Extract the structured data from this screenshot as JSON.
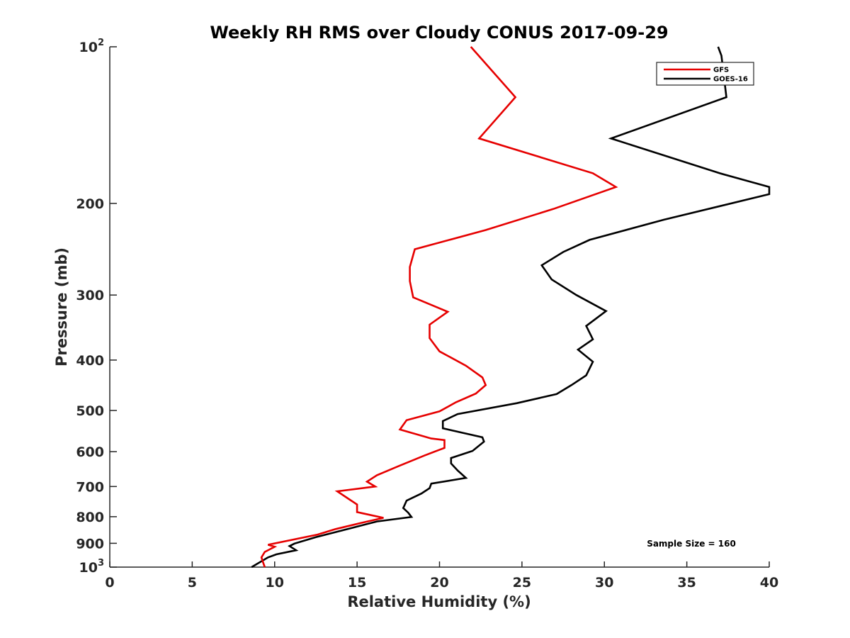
{
  "chart_data": {
    "type": "line",
    "title": "Weekly RH RMS over Cloudy CONUS 2017-09-29",
    "xlabel": "Relative Humidity (%)",
    "ylabel": "Pressure (mb)",
    "xlim": [
      0,
      40
    ],
    "ylim": [
      100,
      1000
    ],
    "y_scale": "log",
    "y_reversed": true,
    "x_ticks": [
      "0",
      "5",
      "10",
      "15",
      "20",
      "25",
      "30",
      "35",
      "40"
    ],
    "y_ticks": [
      {
        "value": 100,
        "base": "10",
        "exp": "2"
      },
      {
        "value": 200,
        "label": "200"
      },
      {
        "value": 300,
        "label": "300"
      },
      {
        "value": 400,
        "label": "400"
      },
      {
        "value": 500,
        "label": "500"
      },
      {
        "value": 600,
        "label": "600"
      },
      {
        "value": 700,
        "label": "700"
      },
      {
        "value": 800,
        "label": "800"
      },
      {
        "value": 900,
        "label": "900"
      },
      {
        "value": 1000,
        "base": "10",
        "exp": "3"
      }
    ],
    "grid": false,
    "legend_position": "top-right",
    "annotation": "Sample Size = 160",
    "series": [
      {
        "name": "GFS",
        "color": "#e60000",
        "points": [
          [
            21.9,
            100
          ],
          [
            24.6,
            125
          ],
          [
            22.4,
            150
          ],
          [
            29.3,
            175
          ],
          [
            30.7,
            186
          ],
          [
            26.9,
            205
          ],
          [
            22.8,
            225
          ],
          [
            18.5,
            245
          ],
          [
            18.2,
            265
          ],
          [
            18.2,
            282
          ],
          [
            18.4,
            303
          ],
          [
            20.5,
            323
          ],
          [
            19.4,
            342
          ],
          [
            19.4,
            363
          ],
          [
            20.0,
            385
          ],
          [
            21.6,
            410
          ],
          [
            22.6,
            432
          ],
          [
            22.8,
            447
          ],
          [
            22.2,
            464
          ],
          [
            21.0,
            482
          ],
          [
            20.0,
            502
          ],
          [
            18.0,
            522
          ],
          [
            17.6,
            544
          ],
          [
            19.5,
            566
          ],
          [
            20.3,
            570
          ],
          [
            20.3,
            590
          ],
          [
            19.1,
            610
          ],
          [
            17.5,
            640
          ],
          [
            16.2,
            666
          ],
          [
            15.6,
            685
          ],
          [
            16.1,
            700
          ],
          [
            13.8,
            715
          ],
          [
            14.5,
            740
          ],
          [
            15.0,
            758
          ],
          [
            15.0,
            784
          ],
          [
            16.6,
            804
          ],
          [
            15.2,
            823
          ],
          [
            13.7,
            845
          ],
          [
            12.6,
            866
          ],
          [
            9.6,
            906
          ],
          [
            10.0,
            914
          ],
          [
            9.4,
            935
          ],
          [
            9.2,
            958
          ],
          [
            9.3,
            980
          ],
          [
            9.4,
            1000
          ]
        ]
      },
      {
        "name": "GOES-16",
        "color": "#000000",
        "points": [
          [
            36.9,
            100
          ],
          [
            37.1,
            104
          ],
          [
            37.4,
            125
          ],
          [
            30.4,
            150
          ],
          [
            37.0,
            175
          ],
          [
            40.0,
            186
          ],
          [
            40.0,
            192
          ],
          [
            33.6,
            215
          ],
          [
            29.1,
            235
          ],
          [
            27.5,
            248
          ],
          [
            26.2,
            263
          ],
          [
            26.8,
            280
          ],
          [
            28.3,
            300
          ],
          [
            30.1,
            322
          ],
          [
            28.9,
            344
          ],
          [
            29.3,
            365
          ],
          [
            28.4,
            382
          ],
          [
            29.3,
            403
          ],
          [
            28.9,
            428
          ],
          [
            28.0,
            447
          ],
          [
            27.1,
            465
          ],
          [
            24.7,
            484
          ],
          [
            21.1,
            508
          ],
          [
            20.2,
            524
          ],
          [
            20.2,
            541
          ],
          [
            22.6,
            563
          ],
          [
            22.7,
            574
          ],
          [
            22.0,
            598
          ],
          [
            20.7,
            617
          ],
          [
            20.7,
            632
          ],
          [
            21.1,
            652
          ],
          [
            21.6,
            674
          ],
          [
            19.5,
            691
          ],
          [
            19.4,
            705
          ],
          [
            18.9,
            722
          ],
          [
            18.0,
            745
          ],
          [
            17.8,
            770
          ],
          [
            18.1,
            786
          ],
          [
            18.3,
            801
          ],
          [
            16.2,
            817
          ],
          [
            14.6,
            842
          ],
          [
            12.5,
            876
          ],
          [
            11.2,
            901
          ],
          [
            10.9,
            911
          ],
          [
            11.3,
            928
          ],
          [
            10.1,
            945
          ],
          [
            9.6,
            958
          ],
          [
            8.6,
            1000
          ]
        ]
      }
    ]
  }
}
